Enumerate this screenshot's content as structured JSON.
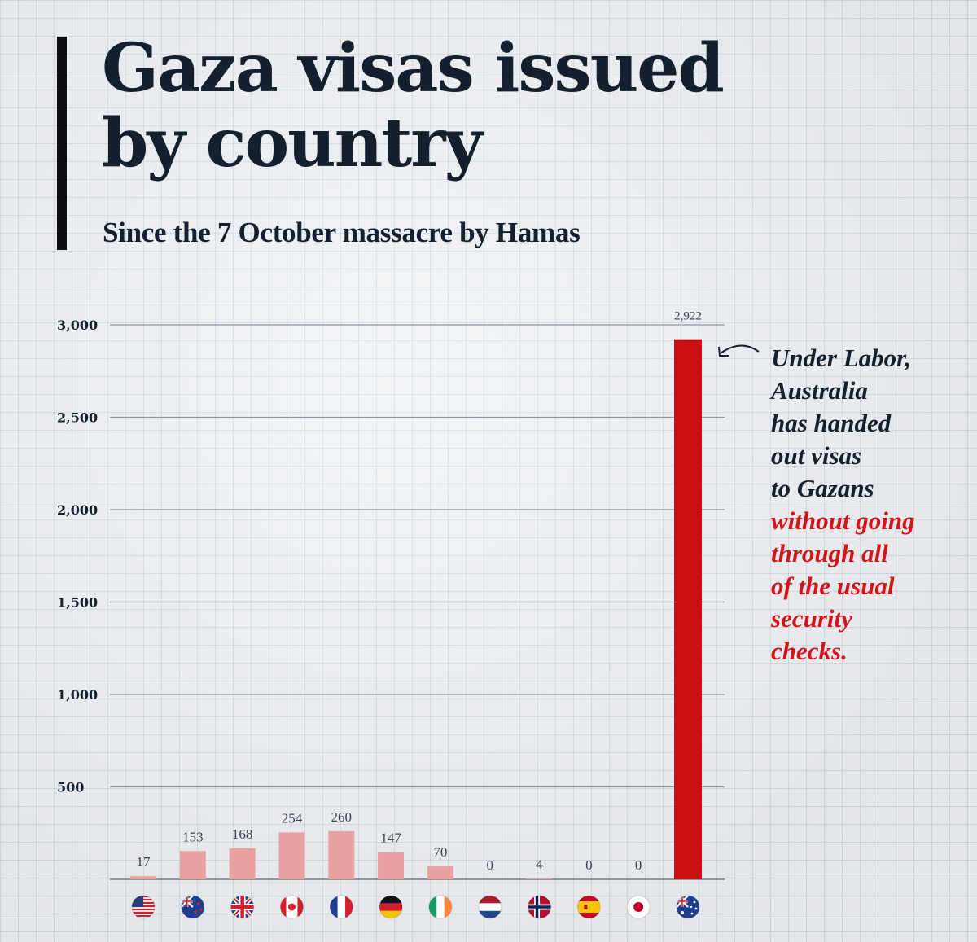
{
  "header": {
    "title_line1": "Gaza visas issued",
    "title_line2": "by country",
    "subtitle": "Since the 7 October massacre by Hamas"
  },
  "annotation": {
    "black_lines": [
      "Under Labor,",
      "Australia",
      "has handed",
      "out visas",
      "to Gazans"
    ],
    "red_lines": [
      "without going",
      "through all",
      "of the usual",
      "security",
      "checks."
    ]
  },
  "colors": {
    "bar": "#e8a2a2",
    "highlight_bar": "#c80f12",
    "highlight_text": "#d0151b",
    "grid": "#8e96a3",
    "text": "#14202e"
  },
  "chart_data": {
    "type": "bar",
    "categories": [
      "United States",
      "New Zealand",
      "United Kingdom",
      "Canada",
      "France",
      "Germany",
      "Ireland",
      "Netherlands",
      "Norway",
      "Spain",
      "Japan",
      "Australia"
    ],
    "icons": [
      "us-flag-icon",
      "nz-flag-icon",
      "uk-flag-icon",
      "canada-flag-icon",
      "france-flag-icon",
      "germany-flag-icon",
      "ireland-flag-icon",
      "netherlands-flag-icon",
      "norway-flag-icon",
      "spain-flag-icon",
      "japan-flag-icon",
      "australia-flag-icon"
    ],
    "values": [
      17,
      153,
      168,
      254,
      260,
      147,
      70,
      0,
      4,
      0,
      0,
      2922
    ],
    "value_labels": [
      "17",
      "153",
      "168",
      "254",
      "260",
      "147",
      "70",
      "0",
      "4",
      "0",
      "0",
      "2,922"
    ],
    "highlight_index": 11,
    "yticks": [
      500,
      1000,
      1500,
      2000,
      2500,
      3000
    ],
    "ytick_labels": [
      "500",
      "1,000",
      "1,500",
      "2,000",
      "2,500",
      "3,000"
    ],
    "ylim": [
      0,
      3000
    ],
    "grid": true,
    "title": "Gaza visas issued by country",
    "subtitle": "Since the 7 October massacre by Hamas"
  }
}
